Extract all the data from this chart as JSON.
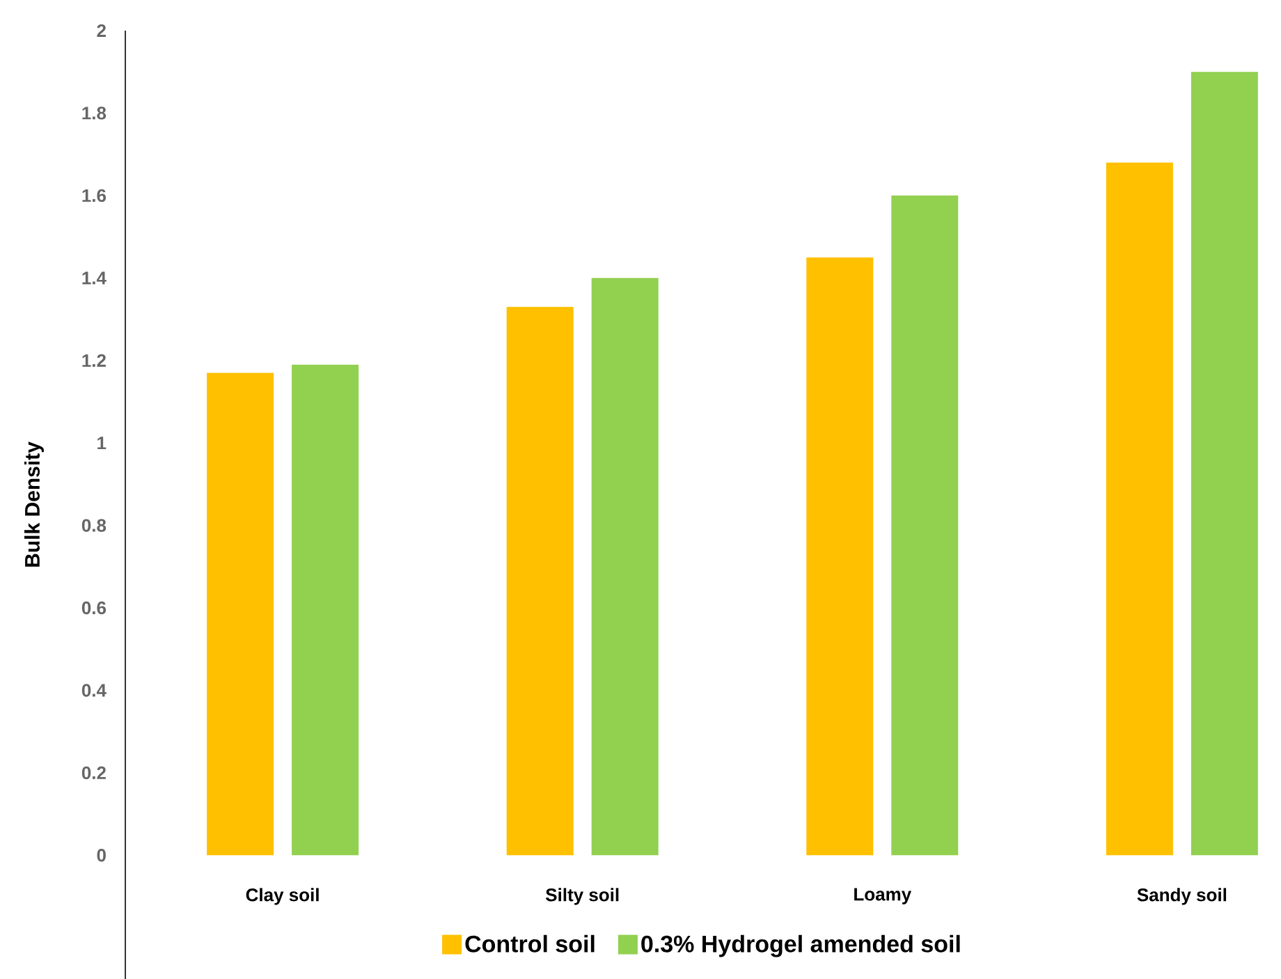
{
  "chart_data": {
    "type": "bar",
    "ylabel": "Bulk Density",
    "categories": [
      "Clay soil",
      "Silty soil",
      "Loamy",
      "Sandy soil"
    ],
    "series": [
      {
        "name": "Control soil",
        "color": "#ffc000",
        "values": [
          1.17,
          1.33,
          1.45,
          1.68
        ]
      },
      {
        "name": "0.3% Hydrogel amended soil",
        "color": "#92d050",
        "values": [
          1.19,
          1.4,
          1.6,
          1.9
        ]
      }
    ],
    "ylim": [
      -0.3,
      2
    ],
    "yticks": [
      0,
      0.2,
      0.4,
      0.6,
      0.8,
      1,
      1.2,
      1.4,
      1.6,
      1.8,
      2
    ],
    "grid": false,
    "legend": "bottom"
  }
}
